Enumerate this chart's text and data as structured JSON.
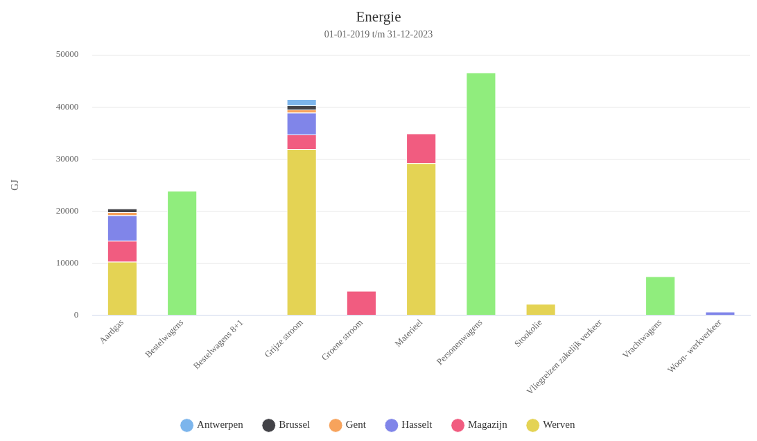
{
  "chart_data": {
    "type": "bar",
    "title": "Energie",
    "subtitle": "01-01-2019 t/m 31-12-2023",
    "ylabel": "GJ",
    "categories": [
      "Aardgas",
      "Bestelwagens",
      "Bestelwagens 8+1",
      "Grijze stroom",
      "Groene stroom",
      "Materieel",
      "Personenwagens",
      "Stookolie",
      "Vliegreizen zakelijk verkeer",
      "Vrachtwagens",
      "Woon- werkverkeer"
    ],
    "stacked": true,
    "ylim": [
      0,
      50000
    ],
    "yticks": [
      0,
      10000,
      20000,
      30000,
      40000,
      50000
    ],
    "grid": "y",
    "legend": "bottom",
    "series": [
      {
        "name": "Werven",
        "color": "#e4d354",
        "values": [
          10300,
          null,
          null,
          31900,
          null,
          29200,
          null,
          2200,
          null,
          null,
          null
        ]
      },
      {
        "name": "Magazijn",
        "color": "#f15c80",
        "values": [
          4000,
          null,
          null,
          2800,
          4700,
          5700,
          null,
          null,
          null,
          null,
          null
        ]
      },
      {
        "name": "Hasselt",
        "color": "#8085e9",
        "values": [
          4900,
          null,
          null,
          4200,
          null,
          null,
          null,
          null,
          null,
          null,
          700
        ]
      },
      {
        "name": "Gent",
        "color": "#f7a35c",
        "values": [
          600,
          null,
          null,
          600,
          null,
          null,
          null,
          null,
          null,
          null,
          null
        ]
      },
      {
        "color": "#90ed7d",
        "values": [
          null,
          23900,
          null,
          null,
          null,
          null,
          46600,
          null,
          null,
          7500,
          null
        ]
      },
      {
        "name": "Brussel",
        "color": "#434348",
        "values": [
          700,
          null,
          null,
          800,
          null,
          null,
          null,
          null,
          null,
          null,
          null
        ]
      },
      {
        "name": "Antwerpen",
        "color": "#7cb5ec",
        "values": [
          null,
          null,
          null,
          1200,
          null,
          null,
          null,
          null,
          null,
          null,
          null
        ]
      }
    ]
  }
}
